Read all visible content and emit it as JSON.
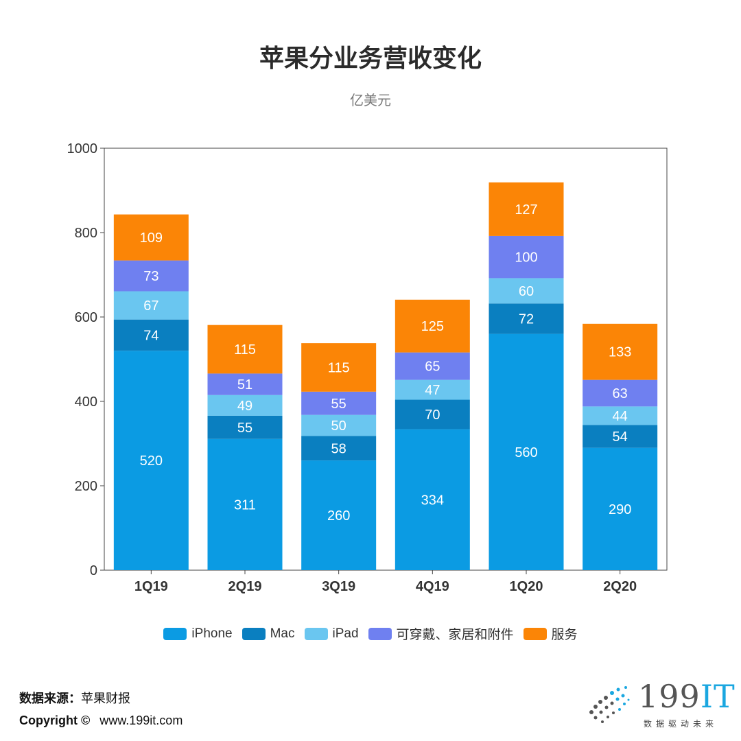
{
  "title": "苹果分业务营收变化",
  "subtitle": "亿美元",
  "chart_data": {
    "type": "bar",
    "stacked": true,
    "title": "苹果分业务营收变化",
    "ylabel": "亿美元",
    "xlabel": "",
    "ylim": [
      0,
      1000
    ],
    "yticks": [
      0,
      200,
      400,
      600,
      800,
      1000
    ],
    "categories": [
      "1Q19",
      "2Q19",
      "3Q19",
      "4Q19",
      "1Q20",
      "2Q20"
    ],
    "series": [
      {
        "name": "iPhone",
        "color": "#0b9be3",
        "values": [
          520,
          311,
          260,
          334,
          560,
          290
        ]
      },
      {
        "name": "Mac",
        "color": "#0a7fc0",
        "values": [
          74,
          55,
          58,
          70,
          72,
          54
        ]
      },
      {
        "name": "iPad",
        "color": "#6ac6f0",
        "values": [
          67,
          49,
          50,
          47,
          60,
          44
        ]
      },
      {
        "name": "可穿戴、家居和附件",
        "color": "#6f80f0",
        "values": [
          73,
          51,
          55,
          65,
          100,
          63
        ]
      },
      {
        "name": "服务",
        "color": "#fb8506",
        "values": [
          109,
          115,
          115,
          125,
          127,
          133
        ]
      }
    ],
    "legend": "bottom"
  },
  "footer": {
    "source_label": "数据来源：",
    "source_value": "苹果财报",
    "copyright_label": "Copyright ©",
    "copyright_value": "www.199it.com"
  },
  "logo": {
    "text_main": "199",
    "text_it": "IT",
    "slogan": "数据驱动未来"
  }
}
